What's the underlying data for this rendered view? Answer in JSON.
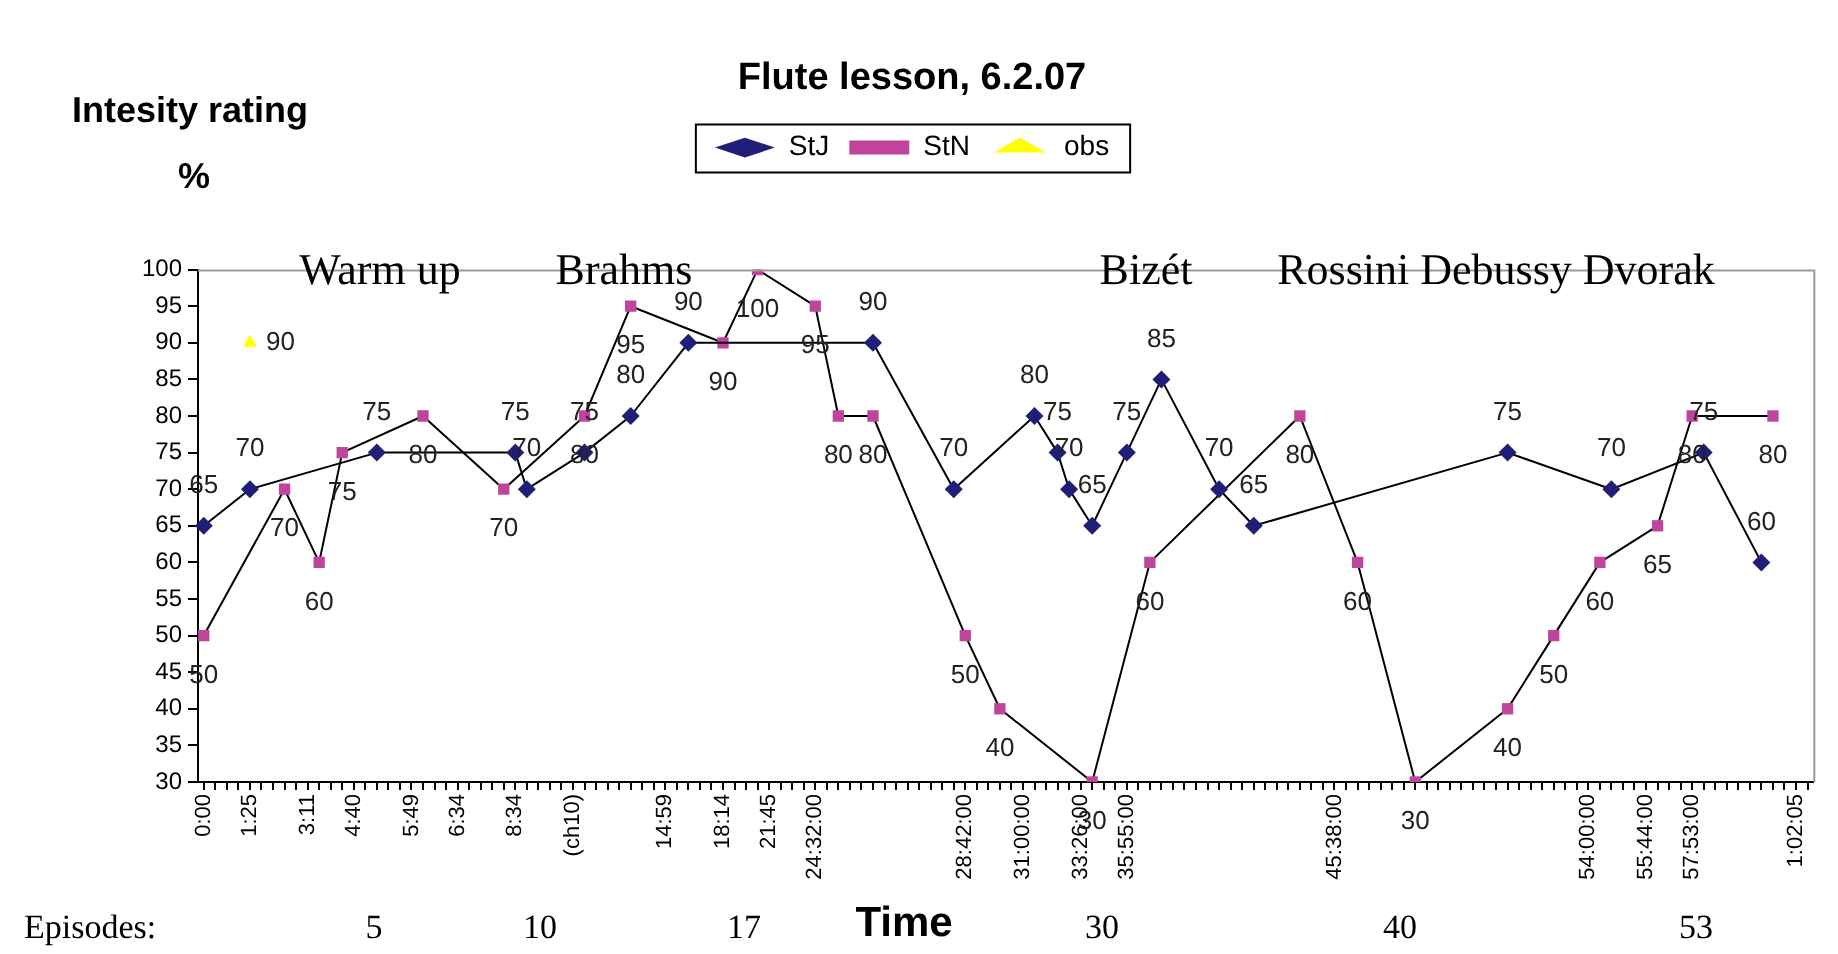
{
  "chart_data": {
    "type": "line",
    "title": "Flute lesson, 6.2.07",
    "ylabel": "Intesity rating %",
    "xlabel": "Time",
    "categories": [
      "0:00",
      null,
      null,
      null,
      "1:25",
      null,
      null,
      null,
      null,
      "3:11",
      null,
      null,
      null,
      "4:40",
      null,
      null,
      null,
      null,
      "5:49",
      null,
      null,
      null,
      "6:34",
      null,
      null,
      null,
      null,
      "8:34",
      null,
      null,
      null,
      null,
      "(ch10)",
      null,
      null,
      null,
      null,
      null,
      null,
      null,
      "14:59",
      null,
      null,
      null,
      null,
      "18:14",
      null,
      null,
      null,
      "21:45",
      null,
      null,
      null,
      "24:32:00",
      null,
      null,
      null,
      null,
      null,
      null,
      null,
      null,
      null,
      null,
      null,
      null,
      "28:42:00",
      null,
      null,
      null,
      null,
      "31:00:00",
      null,
      null,
      null,
      null,
      "33:26:00",
      null,
      null,
      null,
      "35:55:00",
      null,
      null,
      null,
      null,
      null,
      null,
      null,
      null,
      null,
      null,
      null,
      null,
      null,
      null,
      null,
      null,
      null,
      "45:38:00",
      null,
      null,
      null,
      null,
      null,
      null,
      null,
      null,
      null,
      null,
      null,
      null,
      null,
      null,
      null,
      null,
      null,
      null,
      null,
      null,
      null,
      "54:00:00",
      null,
      null,
      null,
      null,
      "55:44:00",
      null,
      null,
      null,
      "57:53:00",
      null,
      null,
      null,
      null,
      null,
      null,
      null,
      null,
      "1:02:05",
      null
    ],
    "series": [
      {
        "name": "StJ",
        "color": "#1f1f78",
        "marker": "diamond",
        "values": [
          65,
          null,
          null,
          null,
          70,
          null,
          null,
          null,
          null,
          null,
          null,
          null,
          null,
          null,
          null,
          75,
          null,
          null,
          null,
          null,
          null,
          null,
          null,
          null,
          null,
          null,
          null,
          75,
          70,
          null,
          null,
          null,
          null,
          75,
          null,
          null,
          null,
          80,
          null,
          null,
          null,
          null,
          90,
          null,
          null,
          null,
          null,
          null,
          null,
          null,
          null,
          null,
          null,
          null,
          null,
          null,
          null,
          null,
          90,
          null,
          null,
          null,
          null,
          null,
          null,
          70,
          null,
          null,
          null,
          null,
          null,
          null,
          80,
          null,
          75,
          70,
          null,
          65,
          null,
          null,
          75,
          null,
          null,
          85,
          null,
          null,
          null,
          null,
          70,
          null,
          null,
          65,
          null,
          null,
          null,
          null,
          null,
          null,
          null,
          null,
          null,
          null,
          null,
          null,
          null,
          null,
          null,
          null,
          null,
          null,
          null,
          null,
          null,
          75,
          null,
          null,
          null,
          null,
          null,
          null,
          null,
          null,
          70,
          null,
          null,
          null,
          null,
          null,
          null,
          null,
          75,
          null,
          null,
          null,
          null,
          60,
          null,
          null,
          null,
          null
        ]
      },
      {
        "name": "StN",
        "color": "#c0449c",
        "marker": "square",
        "values": [
          50,
          null,
          null,
          null,
          null,
          null,
          null,
          70,
          null,
          null,
          60,
          null,
          75,
          null,
          null,
          null,
          null,
          null,
          null,
          80,
          null,
          null,
          null,
          null,
          null,
          null,
          70,
          null,
          null,
          null,
          null,
          null,
          null,
          80,
          null,
          null,
          null,
          95,
          null,
          null,
          null,
          null,
          null,
          null,
          null,
          90,
          null,
          null,
          100,
          null,
          null,
          null,
          null,
          95,
          null,
          80,
          null,
          null,
          80,
          null,
          null,
          null,
          null,
          null,
          null,
          null,
          50,
          null,
          null,
          40,
          null,
          null,
          null,
          null,
          null,
          null,
          null,
          30,
          null,
          null,
          null,
          null,
          60,
          null,
          null,
          null,
          null,
          null,
          null,
          null,
          null,
          null,
          null,
          null,
          null,
          80,
          null,
          null,
          null,
          null,
          60,
          null,
          null,
          null,
          null,
          30,
          null,
          null,
          null,
          null,
          null,
          null,
          null,
          40,
          null,
          null,
          null,
          50,
          null,
          null,
          null,
          60,
          null,
          null,
          null,
          null,
          65,
          null,
          null,
          80,
          null,
          null,
          null,
          null,
          null,
          null,
          80,
          null,
          null,
          null
        ]
      },
      {
        "name": "obs",
        "type": "scatter",
        "color": "#ffff00",
        "marker": "triangle",
        "values": [
          null,
          null,
          null,
          null,
          90,
          null,
          null,
          null,
          null,
          null,
          null,
          null,
          null,
          null,
          null,
          null,
          null,
          null,
          null,
          null,
          null,
          null,
          null,
          null,
          null,
          null,
          null,
          null,
          null,
          null,
          null,
          null,
          null,
          null,
          null,
          null,
          null,
          null,
          null,
          null,
          null,
          null,
          null,
          null,
          null,
          null,
          null,
          null,
          null,
          null,
          null,
          null,
          null,
          null,
          null,
          null,
          null,
          null,
          null,
          null,
          null,
          null,
          null,
          null,
          null,
          null,
          null,
          null,
          null,
          null,
          null,
          null,
          null,
          null,
          null,
          null,
          null,
          null,
          null,
          null,
          null,
          null,
          null,
          null,
          null,
          null,
          null,
          null,
          null,
          null,
          null,
          null,
          null,
          null,
          null,
          null,
          null,
          null,
          null,
          null,
          null,
          null,
          null,
          null,
          null,
          null,
          null,
          null,
          null,
          null,
          null,
          null,
          null,
          null,
          null,
          null,
          null,
          null,
          null,
          null,
          null,
          null,
          null,
          null,
          null,
          null,
          null,
          null,
          null,
          null,
          null,
          null,
          null,
          null,
          null,
          null,
          null,
          null,
          null,
          null
        ]
      }
    ],
    "ylim": [
      30,
      100
    ],
    "yticks": [
      30,
      35,
      40,
      45,
      50,
      55,
      60,
      65,
      70,
      75,
      80,
      85,
      90,
      95,
      100
    ],
    "grid": false,
    "legend": "top",
    "data_labels": true,
    "line_style": "solid",
    "annotations": [
      "Warm up",
      "Brahms",
      "Bizét",
      "Rossini Debussy Dvorak",
      "Episodes:",
      "5",
      "10",
      "17",
      "30",
      "40",
      "53"
    ]
  }
}
